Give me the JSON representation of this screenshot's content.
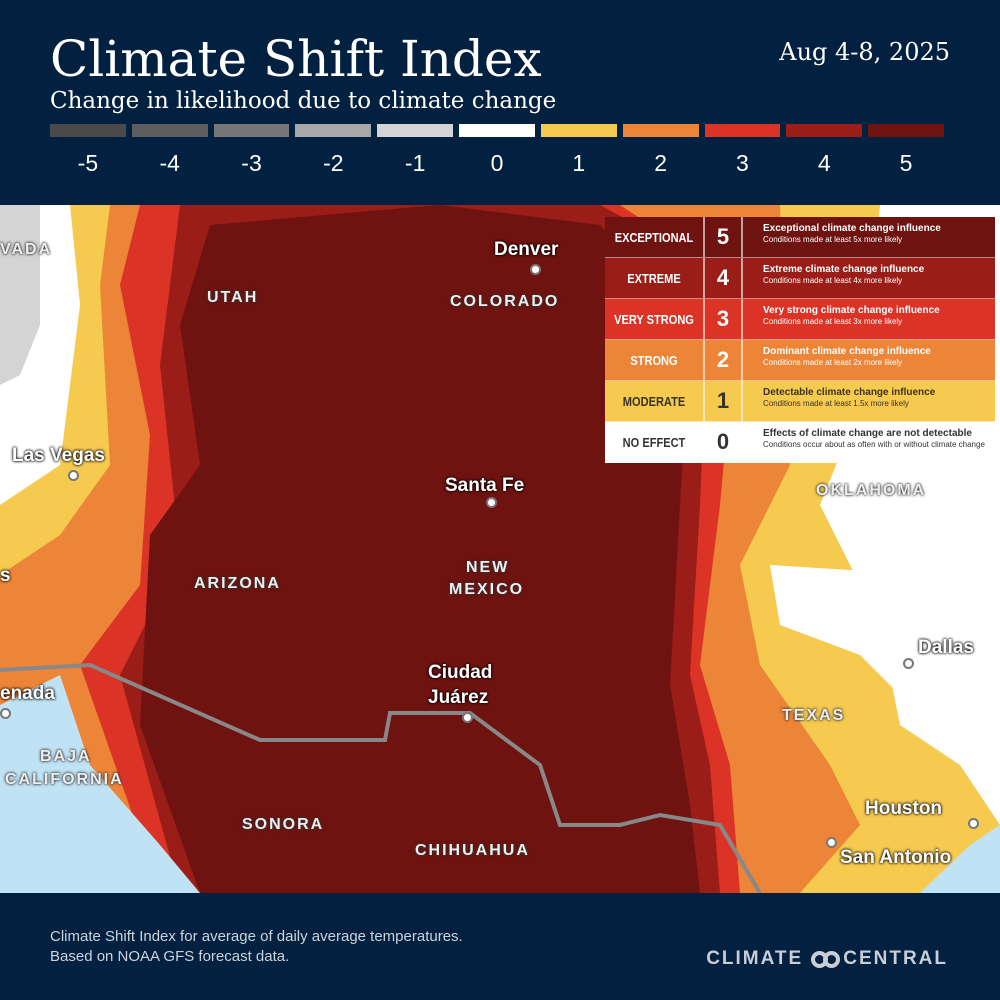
{
  "header": {
    "title": "Climate Shift Index",
    "subtitle": "Change in likelihood due to climate change",
    "date": "Aug 4-8, 2025"
  },
  "scale": [
    {
      "label": "-5",
      "color": "#4a4a4a"
    },
    {
      "label": "-4",
      "color": "#5e5e5e"
    },
    {
      "label": "-3",
      "color": "#777777"
    },
    {
      "label": "-2",
      "color": "#a8a8a8"
    },
    {
      "label": "-1",
      "color": "#d4d4d4"
    },
    {
      "label": "0",
      "color": "#ffffff"
    },
    {
      "label": "1",
      "color": "#f6c94f"
    },
    {
      "label": "2",
      "color": "#ec8537"
    },
    {
      "label": "3",
      "color": "#dc3327"
    },
    {
      "label": "4",
      "color": "#9b1d17"
    },
    {
      "label": "5",
      "color": "#6e1310"
    }
  ],
  "legend": [
    {
      "name": "EXCEPTIONAL",
      "value": "5",
      "title": "Exceptional climate change influence",
      "desc": "Conditions made at least 5x more likely",
      "bg": "#6e1310",
      "fg": "#ffffff"
    },
    {
      "name": "EXTREME",
      "value": "4",
      "title": "Extreme climate change influence",
      "desc": "Conditions made at least 4x more likely",
      "bg": "#9b1d17",
      "fg": "#ffffff"
    },
    {
      "name": "VERY STRONG",
      "value": "3",
      "title": "Very strong climate change influence",
      "desc": "Conditions made at least 3x more likely",
      "bg": "#dc3327",
      "fg": "#ffffff"
    },
    {
      "name": "STRONG",
      "value": "2",
      "title": "Dominant climate change influence",
      "desc": "Conditions made at least  2x more likely",
      "bg": "#ec8537",
      "fg": "#ffffff"
    },
    {
      "name": "MODERATE",
      "value": "1",
      "title": "Detectable climate change influence",
      "desc": "Conditions made at least 1.5x more likely",
      "bg": "#f6c94f",
      "fg": "#3a3320"
    },
    {
      "name": "NO EFFECT",
      "value": "0",
      "title": "Effects of climate change are not detectable",
      "desc": "Conditions occur about as often with or without climate change",
      "bg": "#ffffff",
      "fg": "#333333"
    }
  ],
  "map": {
    "cities": {
      "denver": "Denver",
      "las_vegas": "Las Vegas",
      "santa_fe": "Santa Fe",
      "ciudad_juarez_1": "Ciudad",
      "ciudad_juarez_2": "Juárez",
      "dallas": "Dallas",
      "houston": "Houston",
      "san_antonio": "San Antonio",
      "ensenada": "enada",
      "cut_s": "s"
    },
    "states": {
      "nevada": "VADA",
      "utah": "UTAH",
      "colorado": "COLORADO",
      "oklahoma": "OKLAHOMA",
      "arizona": "ARIZONA",
      "new_mexico_1": "NEW",
      "new_mexico_2": "MEXICO",
      "texas": "TEXAS",
      "baja_1": "BAJA",
      "baja_2": "CALIFORNIA",
      "sonora": "SONORA",
      "chihuahua": "CHIHUAHUA"
    }
  },
  "footer": {
    "note_1": "Climate Shift Index for average of daily average temperatures.",
    "note_2": "Based on NOAA GFS forecast data.",
    "brand_1": "CLIMATE",
    "brand_2": "CENTRAL"
  }
}
